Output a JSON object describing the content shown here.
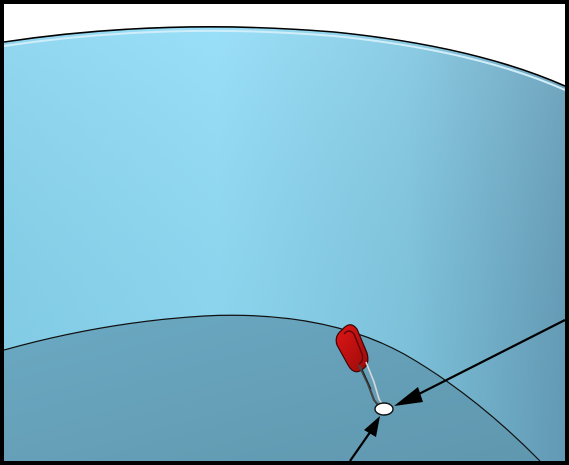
{
  "viewport": {
    "description_visible_text": ""
  },
  "colors": {
    "frame": "#000000",
    "background": "#ffffff",
    "wall_light": "#8fdcf7",
    "wall_mid": "#7fcbe6",
    "wall_dark": "#6aa9c6",
    "rim_highlight": "#cfeefa",
    "floor": "#6ba7c0",
    "floor_dark": "#5d93ab",
    "tool_red": "#cc1111",
    "tool_dark": "#3a0606",
    "arrow": "#000000",
    "point_marker": "#ffffff"
  },
  "icons": {
    "tool": "clip-tool-icon",
    "point": "selection-point-icon",
    "arrow_right": "arrow-right-icon",
    "arrow_bottom": "arrow-bottom-icon"
  }
}
